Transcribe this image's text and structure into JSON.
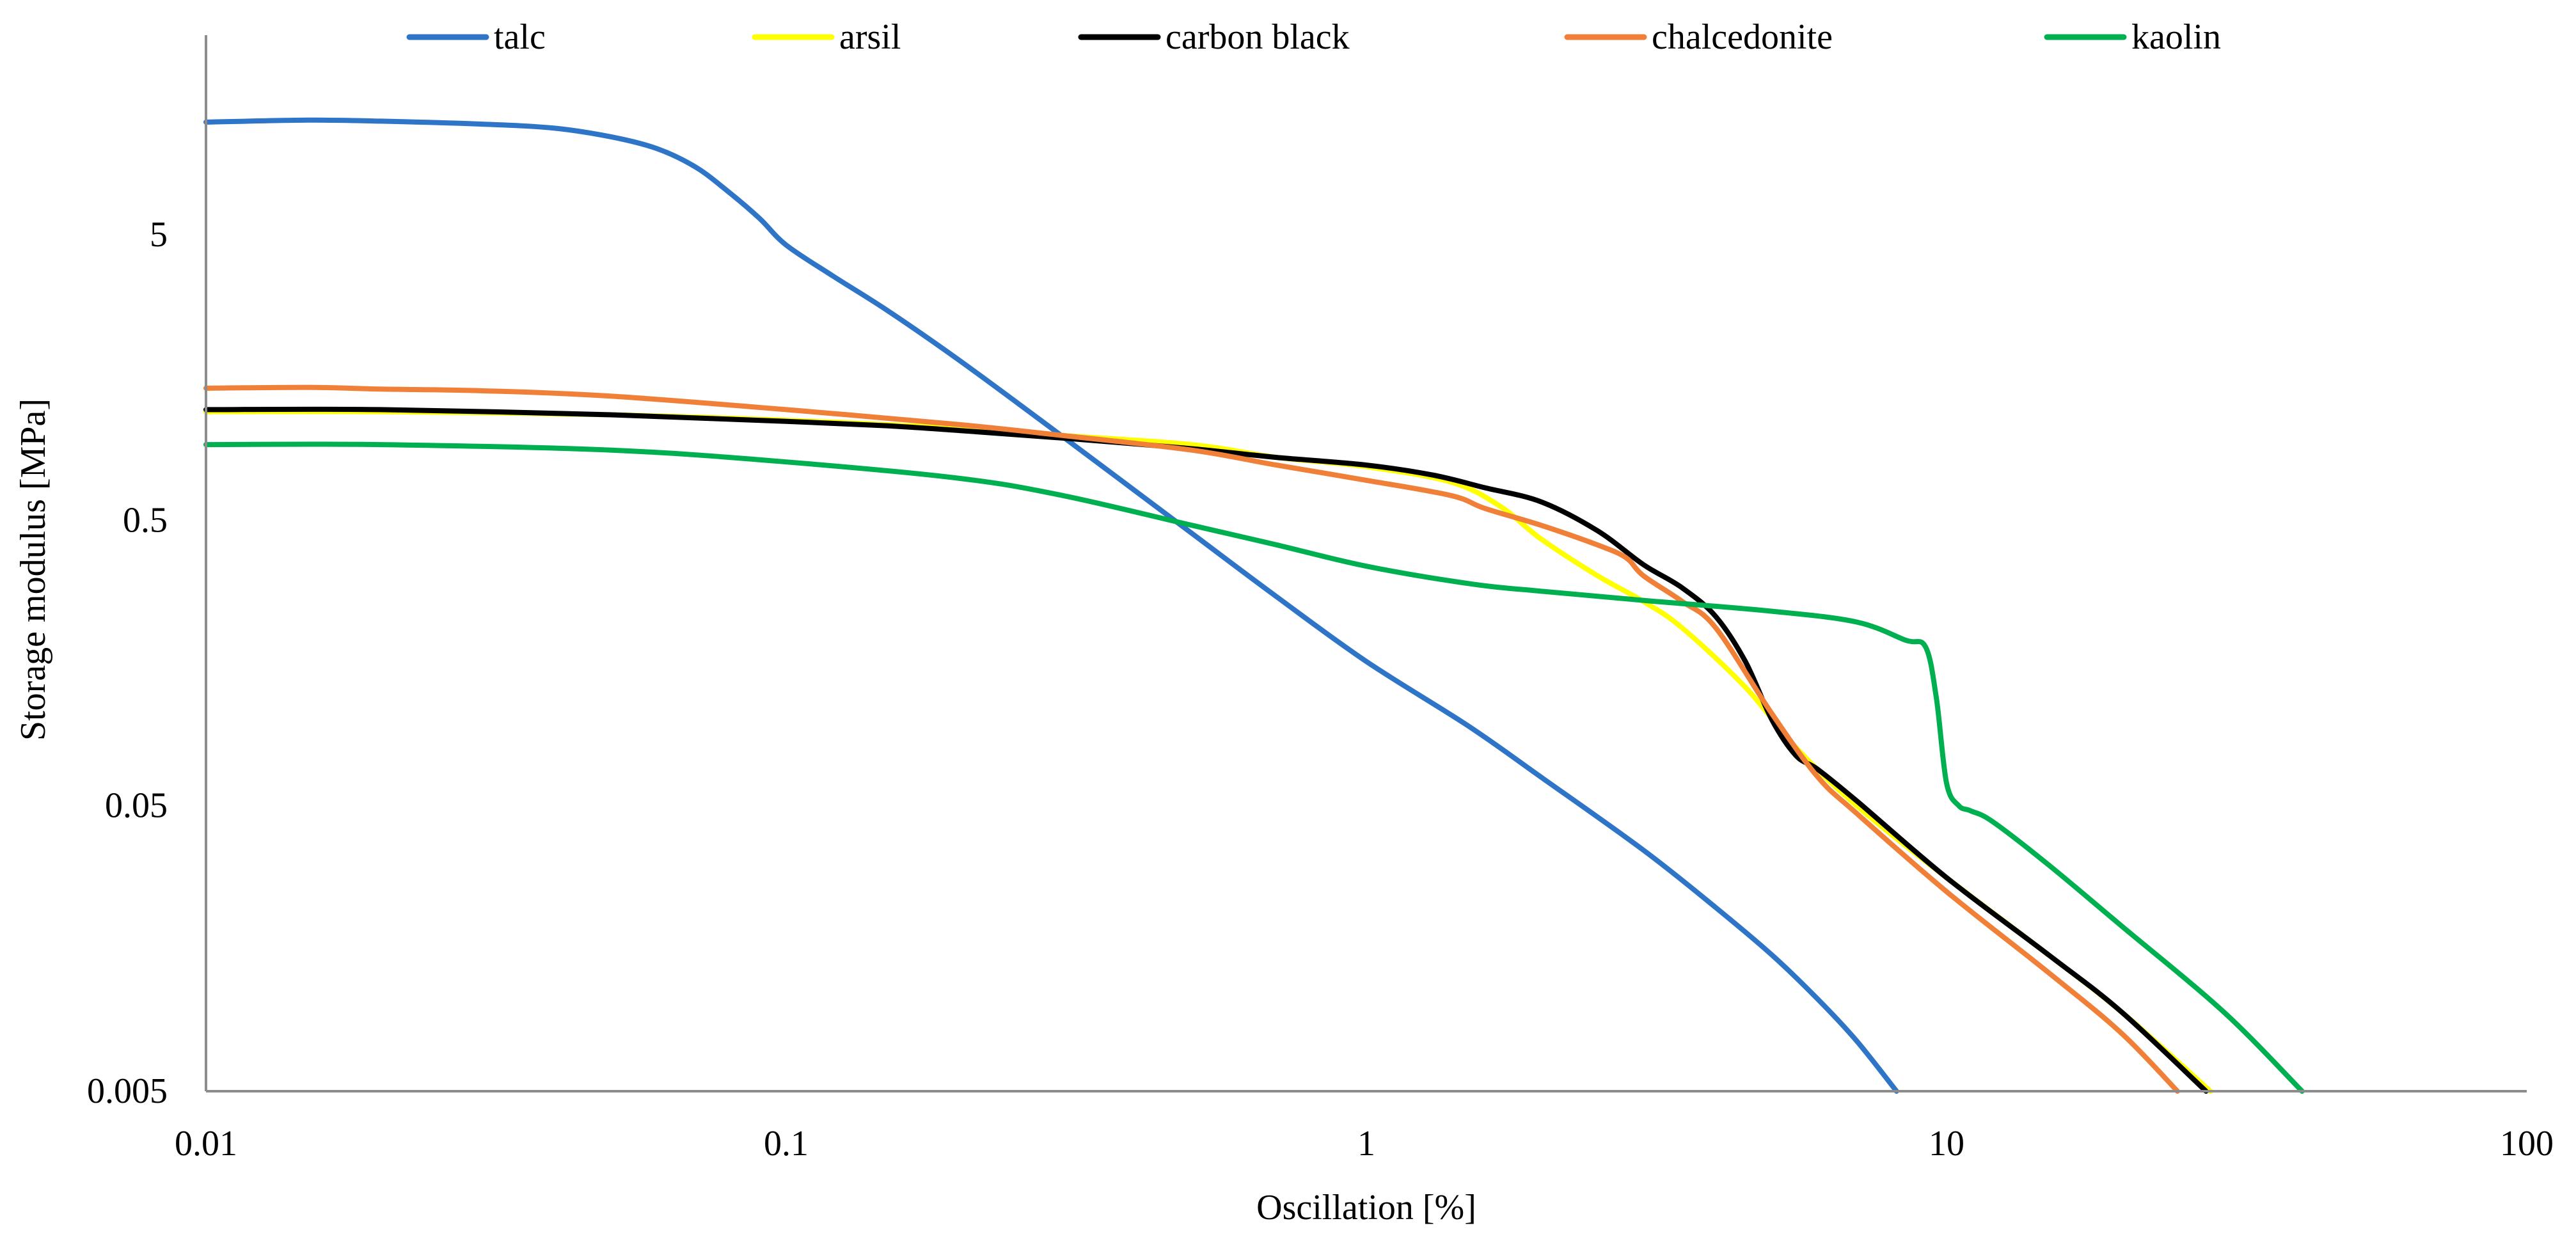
{
  "chart_data": {
    "type": "line",
    "title": "",
    "xlabel": "Oscillation [%]",
    "ylabel": "Storage modulus [MPa]",
    "xscale": "log",
    "yscale": "log",
    "xlim": [
      0.01,
      100
    ],
    "ylim": [
      0.005,
      25
    ],
    "xticks": [
      0.01,
      0.1,
      1,
      10,
      100
    ],
    "xtick_labels": [
      "0.01",
      "0.1",
      "1",
      "10",
      "100"
    ],
    "yticks": [
      0.005,
      0.05,
      0.5,
      5
    ],
    "ytick_labels": [
      "0.005",
      "0.05",
      "0.5",
      "5"
    ],
    "grid": false,
    "legend_position": "top",
    "series": [
      {
        "name": "talc",
        "color": "#2e75c8",
        "x": [
          0.01,
          0.015,
          0.02,
          0.03,
          0.04,
          0.05,
          0.06,
          0.07,
          0.08,
          0.09,
          0.1,
          0.12,
          0.15,
          0.2,
          0.3,
          0.5,
          0.7,
          1.0,
          1.5,
          2.0,
          3.0,
          4.0,
          5.0,
          6.0,
          7.0,
          8.2
        ],
        "y": [
          12.4,
          12.6,
          12.5,
          12.2,
          11.8,
          11.0,
          10.0,
          8.6,
          7.0,
          5.7,
          4.6,
          3.6,
          2.7,
          1.8,
          0.98,
          0.45,
          0.27,
          0.16,
          0.095,
          0.063,
          0.035,
          0.022,
          0.015,
          0.0105,
          0.0075,
          0.005
        ]
      },
      {
        "name": "arsil",
        "color": "#ffff00",
        "x": [
          0.01,
          0.02,
          0.05,
          0.1,
          0.2,
          0.3,
          0.5,
          0.7,
          1.0,
          1.4,
          1.7,
          2.0,
          2.5,
          3.0,
          3.5,
          4.5,
          5.5,
          7.0,
          10.0,
          15.0,
          20.0,
          28.5
        ],
        "y": [
          1.2,
          1.2,
          1.17,
          1.12,
          1.05,
          0.99,
          0.92,
          0.83,
          0.77,
          0.68,
          0.56,
          0.43,
          0.32,
          0.26,
          0.21,
          0.13,
          0.08,
          0.05,
          0.028,
          0.015,
          0.0095,
          0.005
        ]
      },
      {
        "name": "carbon black",
        "color": "#000000",
        "x": [
          0.01,
          0.02,
          0.05,
          0.1,
          0.15,
          0.2,
          0.3,
          0.5,
          0.7,
          1.0,
          1.3,
          1.6,
          2.0,
          2.5,
          3.0,
          3.5,
          4.0,
          4.5,
          5.0,
          5.5,
          6.0,
          7.0,
          10.0,
          15.0,
          20.0,
          28.0
        ],
        "y": [
          1.22,
          1.22,
          1.17,
          1.11,
          1.07,
          1.03,
          0.97,
          0.89,
          0.83,
          0.78,
          0.72,
          0.65,
          0.58,
          0.46,
          0.35,
          0.29,
          0.23,
          0.16,
          0.1,
          0.075,
          0.067,
          0.052,
          0.028,
          0.015,
          0.0095,
          0.005
        ]
      },
      {
        "name": "chalcedonite",
        "color": "#f07f38",
        "x": [
          0.01,
          0.015,
          0.02,
          0.03,
          0.05,
          0.1,
          0.2,
          0.3,
          0.5,
          0.7,
          1.0,
          1.4,
          1.6,
          2.0,
          2.5,
          2.8,
          3.0,
          3.5,
          4.0,
          5.0,
          6.0,
          7.0,
          10.0,
          15.0,
          20.0,
          25.0
        ],
        "y": [
          1.45,
          1.46,
          1.44,
          1.42,
          1.36,
          1.22,
          1.08,
          0.99,
          0.88,
          0.78,
          0.69,
          0.61,
          0.55,
          0.48,
          0.41,
          0.37,
          0.32,
          0.26,
          0.21,
          0.105,
          0.063,
          0.047,
          0.025,
          0.013,
          0.008,
          0.005
        ]
      },
      {
        "name": "kaolin",
        "color": "#00b050",
        "x": [
          0.01,
          0.02,
          0.05,
          0.1,
          0.2,
          0.3,
          0.5,
          0.7,
          1.0,
          1.5,
          2.0,
          3.0,
          5.0,
          7.0,
          8.5,
          9.2,
          9.6,
          10.0,
          10.5,
          11.0,
          12.0,
          15.0,
          20.0,
          30.0,
          41.0
        ],
        "y": [
          0.92,
          0.92,
          0.88,
          0.8,
          0.7,
          0.61,
          0.48,
          0.41,
          0.345,
          0.3,
          0.282,
          0.262,
          0.24,
          0.22,
          0.19,
          0.18,
          0.12,
          0.06,
          0.05,
          0.048,
          0.044,
          0.031,
          0.019,
          0.0095,
          0.005
        ]
      }
    ]
  }
}
